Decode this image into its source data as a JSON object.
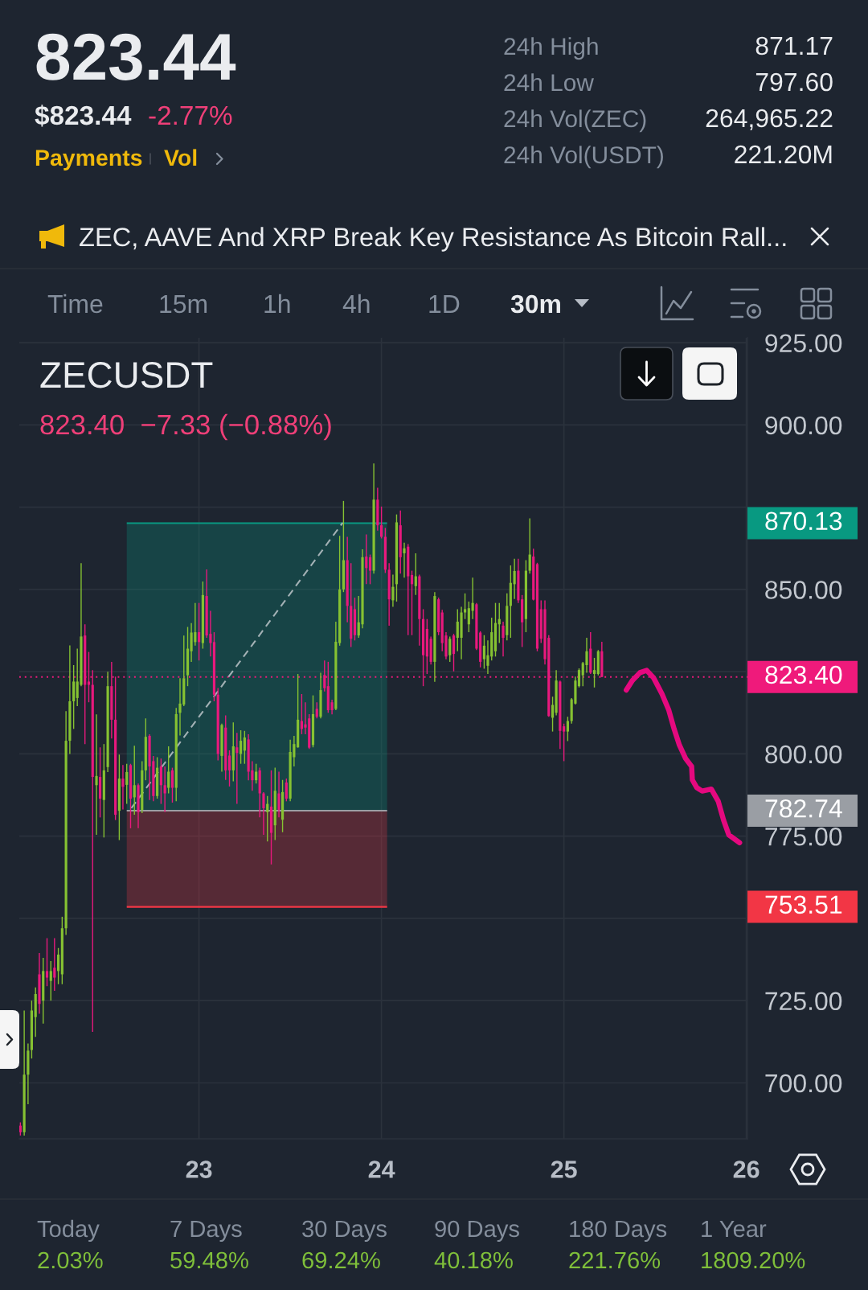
{
  "chart_data": {
    "type": "candlestick",
    "title": "ZECUSDT",
    "subtitle": "823.40  −7.33 (−0.88%)",
    "xlim": [
      22.015,
      26.006
    ],
    "ylim": [
      683,
      926.5
    ],
    "xticks": [
      23,
      24,
      25,
      26
    ],
    "yticks": [
      {
        "value": 700,
        "label": "700.00"
      },
      {
        "value": 725,
        "label": "725.00"
      },
      {
        "value": 750,
        "label": null
      },
      {
        "value": 775,
        "label": "775.00"
      },
      {
        "value": 800,
        "label": "800.00"
      },
      {
        "value": 825,
        "label": null
      },
      {
        "value": 850,
        "label": "850.00"
      },
      {
        "value": 875,
        "label": null
      },
      {
        "value": 900,
        "label": "900.00"
      },
      {
        "value": 925,
        "label": "925.00"
      }
    ],
    "grid": true,
    "series": [
      {
        "color": "#86c232",
        "x": [
          22.042,
          22.063,
          22.083,
          22.104,
          22.146,
          22.188,
          22.229,
          22.25,
          22.271,
          22.292,
          22.313,
          22.333,
          22.354,
          22.438,
          22.479,
          22.5,
          22.563,
          22.604,
          22.646,
          22.688,
          22.708,
          22.771,
          22.833,
          22.875,
          22.896,
          22.917,
          22.938,
          22.958,
          22.979,
          23.021,
          23.125,
          23.188,
          23.229,
          23.25,
          23.313,
          23.375,
          23.417,
          23.458,
          23.5,
          23.521,
          23.542,
          23.625,
          23.667,
          23.75,
          23.771,
          23.792,
          23.875,
          23.896,
          23.958,
          24.063,
          24.083,
          24.125,
          24.188,
          24.292,
          24.375,
          24.417,
          24.438,
          24.458,
          24.479,
          24.5,
          24.563,
          24.583,
          24.604,
          24.625,
          24.646,
          24.688,
          24.708,
          24.729,
          24.792,
          24.813,
          24.938,
          24.958,
          25.021,
          25.042,
          25.063,
          25.083,
          25.104,
          25.125,
          25.167,
          25.188
        ],
        "ohlc": [
          [
            685,
            722,
            684,
            702.5
          ],
          [
            702.5,
            712,
            693.5,
            709.8
          ],
          [
            710,
            725,
            707.4,
            722
          ],
          [
            720,
            729,
            714,
            727
          ],
          [
            725,
            738,
            718,
            734
          ],
          [
            731,
            737,
            725,
            734
          ],
          [
            734,
            741,
            730,
            739
          ],
          [
            733,
            750.5,
            730,
            747
          ],
          [
            747,
            813,
            745,
            804
          ],
          [
            804,
            833,
            800,
            816
          ],
          [
            816,
            827,
            807.6,
            822
          ],
          [
            817,
            832,
            814.5,
            822
          ],
          [
            821,
            858,
            820.6,
            835.7
          ],
          [
            790.5,
            812,
            775.4,
            793.3
          ],
          [
            786,
            803,
            774.6,
            795
          ],
          [
            796,
            825,
            794.5,
            820.6
          ],
          [
            782.7,
            799.8,
            773.8,
            792.5
          ],
          [
            790.6,
            797,
            784.8,
            794.5
          ],
          [
            786.8,
            802.5,
            781.5,
            790.5
          ],
          [
            783,
            797.8,
            782,
            795
          ],
          [
            795,
            810.8,
            792,
            805.2
          ],
          [
            787.2,
            799,
            786.4,
            795.8
          ],
          [
            789.7,
            802.3,
            788,
            794.6
          ],
          [
            789.7,
            814,
            785.6,
            812.1
          ],
          [
            812.5,
            823,
            805.6,
            815.3
          ],
          [
            815,
            836,
            814.5,
            823
          ],
          [
            823.9,
            838.6,
            820.6,
            832
          ],
          [
            831.2,
            839.8,
            828,
            836.9
          ],
          [
            834,
            845.9,
            832.9,
            837
          ],
          [
            833.7,
            852.4,
            832,
            848.3
          ],
          [
            799.4,
            809.2,
            794.6,
            808.8
          ],
          [
            795,
            809.6,
            791.7,
            802.3
          ],
          [
            800,
            807.2,
            797,
            804
          ],
          [
            801,
            807,
            797,
            805
          ],
          [
            792,
            797,
            791,
            794.6
          ],
          [
            782.3,
            787.2,
            773.4,
            784.8
          ],
          [
            778.3,
            795.8,
            773.8,
            788.8
          ],
          [
            780,
            792.1,
            776.2,
            788.4
          ],
          [
            786.4,
            804.3,
            785.6,
            800.6
          ],
          [
            799,
            805.5,
            796.2,
            803
          ],
          [
            802,
            824.3,
            801.9,
            810.4
          ],
          [
            802.7,
            817.8,
            802,
            812.1
          ],
          [
            811.3,
            824.7,
            810.8,
            819.4
          ],
          [
            813.7,
            840.2,
            813.3,
            834.1
          ],
          [
            833.7,
            866.3,
            832.9,
            850
          ],
          [
            850,
            876.9,
            849.2,
            858.9
          ],
          [
            836,
            848,
            835.3,
            840
          ],
          [
            839.4,
            862.2,
            838.2,
            859.8
          ],
          [
            855.7,
            888.3,
            854.8,
            877.3
          ],
          [
            846.7,
            854.5,
            844.7,
            850.8
          ],
          [
            851.6,
            872.8,
            846.3,
            870.4
          ],
          [
            861,
            864.2,
            853.6,
            862.5
          ],
          [
            851,
            861,
            848.3,
            854
          ],
          [
            828,
            849.2,
            821.9,
            848
          ],
          [
            830,
            835.7,
            828,
            835
          ],
          [
            835.3,
            844,
            831.2,
            840.2
          ],
          [
            835.3,
            844.7,
            828.8,
            843
          ],
          [
            843,
            848.8,
            841,
            844
          ],
          [
            839.4,
            846.3,
            837,
            844.3
          ],
          [
            843.5,
            853.6,
            841,
            845.9
          ],
          [
            828.8,
            836.1,
            825.9,
            832.9
          ],
          [
            826.8,
            834.5,
            824.3,
            830
          ],
          [
            829.6,
            841.4,
            828.4,
            837
          ],
          [
            831.2,
            845.9,
            829.6,
            839.8
          ],
          [
            839.4,
            845.9,
            833.7,
            841
          ],
          [
            836.1,
            848.8,
            834.5,
            845
          ],
          [
            845,
            857.3,
            835.3,
            852
          ],
          [
            851.6,
            859.3,
            847.1,
            855.6
          ],
          [
            841,
            858.9,
            837,
            855.7
          ],
          [
            855.7,
            871.6,
            854.8,
            860.6
          ],
          [
            811,
            817.4,
            806.8,
            814.9
          ],
          [
            812.5,
            825.5,
            811.7,
            822.3
          ],
          [
            806.8,
            811.3,
            803.9,
            810
          ],
          [
            810,
            817,
            809.2,
            816.6
          ],
          [
            815.3,
            823.5,
            815,
            822.3
          ],
          [
            820.6,
            826,
            820.2,
            825.5
          ],
          [
            823.9,
            828,
            820.6,
            827.6
          ],
          [
            827,
            835.3,
            824.7,
            831.2
          ],
          [
            824.3,
            829.2,
            820.2,
            825.5
          ],
          [
            824.3,
            831.6,
            823.9,
            831.2
          ]
        ]
      },
      {
        "color": "#e8197d",
        "x": [
          22.021,
          22.125,
          22.167,
          22.208,
          22.375,
          22.396,
          22.417,
          22.458,
          22.521,
          22.542,
          22.583,
          22.625,
          22.667,
          22.729,
          22.75,
          22.792,
          22.813,
          22.854,
          23,
          23.042,
          23.063,
          23.083,
          23.104,
          23.146,
          23.167,
          23.208,
          23.271,
          23.292,
          23.333,
          23.354,
          23.396,
          23.438,
          23.479,
          23.563,
          23.583,
          23.604,
          23.646,
          23.688,
          23.708,
          23.729,
          23.813,
          23.833,
          23.854,
          23.917,
          23.938,
          23.979,
          24,
          24.021,
          24.042,
          24.104,
          24.146,
          24.167,
          24.208,
          24.229,
          24.25,
          24.271,
          24.313,
          24.333,
          24.354,
          24.396,
          24.521,
          24.542,
          24.667,
          24.75,
          24.771,
          24.833,
          24.854,
          24.875,
          24.896,
          24.917,
          24.979,
          25,
          25.146,
          25.208
        ],
        "ohlc": [
          [
            687,
            688,
            684,
            685
          ],
          [
            733,
            739.5,
            721,
            724
          ],
          [
            734,
            744,
            729.4,
            732
          ],
          [
            735,
            744,
            728,
            732
          ],
          [
            836,
            839.4,
            803,
            821
          ],
          [
            822,
            831,
            815.7,
            821
          ],
          [
            821,
            825.5,
            715.5,
            793
          ],
          [
            793,
            802,
            780.7,
            786.4
          ],
          [
            820.6,
            828,
            804.7,
            810.4
          ],
          [
            810.4,
            823.5,
            779.9,
            781.5
          ],
          [
            792.5,
            796.6,
            783.1,
            790
          ],
          [
            796.6,
            797,
            777.4,
            786.4
          ],
          [
            790.5,
            791,
            777.4,
            782.3
          ],
          [
            805.5,
            806,
            786,
            796.2
          ],
          [
            797.8,
            799.4,
            785.6,
            787.2
          ],
          [
            796.2,
            798.6,
            784.8,
            790.5
          ],
          [
            790.5,
            796.2,
            782.3,
            788
          ],
          [
            795,
            795.8,
            785.2,
            789.7
          ],
          [
            837,
            845.9,
            828.4,
            834
          ],
          [
            848,
            856.1,
            835.3,
            836
          ],
          [
            836.5,
            843.5,
            829.6,
            833.7
          ],
          [
            834,
            837,
            816,
            818
          ],
          [
            818,
            820,
            798,
            800
          ],
          [
            808,
            811.7,
            792.1,
            795
          ],
          [
            799.5,
            801.1,
            790.1,
            795
          ],
          [
            802,
            806.4,
            784.8,
            800.3
          ],
          [
            804.4,
            806,
            792,
            794.6
          ],
          [
            795,
            797.8,
            788.8,
            792
          ],
          [
            795,
            795.8,
            780.7,
            788
          ],
          [
            788,
            788.4,
            775.4,
            783.5
          ],
          [
            784,
            795,
            766.4,
            776
          ],
          [
            788,
            794.6,
            780.7,
            783
          ],
          [
            791.3,
            792.5,
            785.6,
            786.4
          ],
          [
            810,
            818.2,
            806,
            807.6
          ],
          [
            809,
            815.7,
            806,
            808
          ],
          [
            810.8,
            812.1,
            801.5,
            801.9
          ],
          [
            813.7,
            815.7,
            810.8,
            811.3
          ],
          [
            824,
            828.4,
            819,
            820
          ],
          [
            820.6,
            828,
            812.5,
            813.3
          ],
          [
            815.7,
            816.5,
            812,
            813.3
          ],
          [
            858.9,
            866,
            840,
            845
          ],
          [
            845,
            858,
            832.5,
            835
          ],
          [
            844,
            847.5,
            834.5,
            836.1
          ],
          [
            860,
            866.7,
            851.6,
            856.5
          ],
          [
            859.8,
            860.6,
            851.6,
            855.7
          ],
          [
            877.3,
            880.9,
            867.9,
            869.5
          ],
          [
            869.5,
            875.2,
            865.5,
            866
          ],
          [
            866,
            868.7,
            855,
            856
          ],
          [
            856,
            858,
            839,
            847
          ],
          [
            869.5,
            874,
            854.8,
            859.8
          ],
          [
            863,
            863.8,
            836.1,
            854
          ],
          [
            854.4,
            855.7,
            836.1,
            851.6
          ],
          [
            854,
            854.5,
            832.9,
            841
          ],
          [
            841,
            844,
            820.6,
            830
          ],
          [
            838,
            841,
            824.3,
            829.6
          ],
          [
            835,
            835.7,
            827.2,
            828
          ],
          [
            847,
            847.5,
            836.1,
            837
          ],
          [
            843,
            843.8,
            831.2,
            833.7
          ],
          [
            836,
            837,
            828.8,
            829.6
          ],
          [
            836,
            836.5,
            825.1,
            830.4
          ],
          [
            845.5,
            845.9,
            831.6,
            832
          ],
          [
            836.9,
            837.3,
            826.3,
            828
          ],
          [
            839,
            840.2,
            829.6,
            835.3
          ],
          [
            855.7,
            859.3,
            845.9,
            846.7
          ],
          [
            847,
            848.3,
            832.5,
            840
          ],
          [
            860,
            862.4,
            846.7,
            846.9
          ],
          [
            857.7,
            858.1,
            831.2,
            832
          ],
          [
            844,
            846.7,
            833.7,
            835
          ],
          [
            844,
            846.7,
            827.2,
            828.8
          ],
          [
            835.3,
            836.1,
            811.3,
            811.5
          ],
          [
            822,
            822.3,
            801.5,
            807
          ],
          [
            808.4,
            809.2,
            797.8,
            806.8
          ],
          [
            832,
            837,
            824.3,
            824.7
          ],
          [
            831.2,
            834.1,
            823.4,
            823.4
          ]
        ]
      },
      {
        "type": "line",
        "name": "870.13",
        "color": "#089981",
        "line_style": "solid",
        "x": [
          22.604,
          24.031
        ],
        "values": [
          870.13,
          870.13
        ],
        "lower": [
          782.74,
          782.74
        ],
        "upper": [
          870.13,
          870.13
        ]
      },
      {
        "type": "line",
        "name": "753.51",
        "color": "#f23645",
        "line_style": "solid",
        "x": [
          22.604,
          24.031
        ],
        "values": [
          753.51,
          753.51
        ],
        "lower": [
          753.51,
          753.51
        ],
        "upper": [
          782.74,
          782.74
        ]
      },
      {
        "type": "line",
        "name": "782.74",
        "color": "#9a9ea4",
        "line_style": "solid",
        "x": [
          22.604,
          24.031
        ],
        "values": [
          782.74,
          782.74
        ]
      },
      {
        "type": "line",
        "color": "#a3b1b5",
        "line_style": "dashed",
        "x": [
          22.629,
          23.788
        ],
        "values": [
          783.5,
          870.3
        ]
      },
      {
        "type": "line",
        "color": "#e5097f",
        "line_style": "solid",
        "x": [
          25.342,
          25.375,
          25.417,
          25.454,
          25.492,
          25.538,
          25.575,
          25.604,
          25.633,
          25.667,
          25.7,
          25.704,
          25.729,
          25.758,
          25.808,
          25.846,
          25.875,
          25.904,
          25.963
        ],
        "values": [
          819.4,
          822.3,
          824.7,
          825.4,
          823.1,
          818.2,
          813.3,
          807.6,
          802.7,
          798.6,
          796.2,
          792.1,
          789.7,
          788.7,
          789.3,
          785.6,
          779.9,
          775.4,
          773.0
        ]
      }
    ],
    "ref_lines": [
      {
        "axis": "y",
        "value": 823.4,
        "label": "823.40",
        "color": "#ef1a7b",
        "line_style": "dotted"
      }
    ],
    "annotations": [
      "823.44",
      "$823.44",
      "-2.77%",
      "Payments",
      "Vol",
      "24h High",
      "871.17",
      "24h Low",
      "797.60",
      "24h Vol(ZEC)",
      "264,965.22",
      "24h Vol(USDT)",
      "221.20M",
      "ZEC, AAVE And XRP Break Key Resistance As Bitcoin Rall...",
      "Time",
      "15m",
      "1h",
      "4h",
      "1D",
      "30m",
      "Today",
      "2.03%",
      "7 Days",
      "59.48%",
      "30 Days",
      "69.24%",
      "90 Days",
      "40.18%",
      "180 Days",
      "221.76%",
      "1 Year",
      "1809.20%"
    ]
  }
}
